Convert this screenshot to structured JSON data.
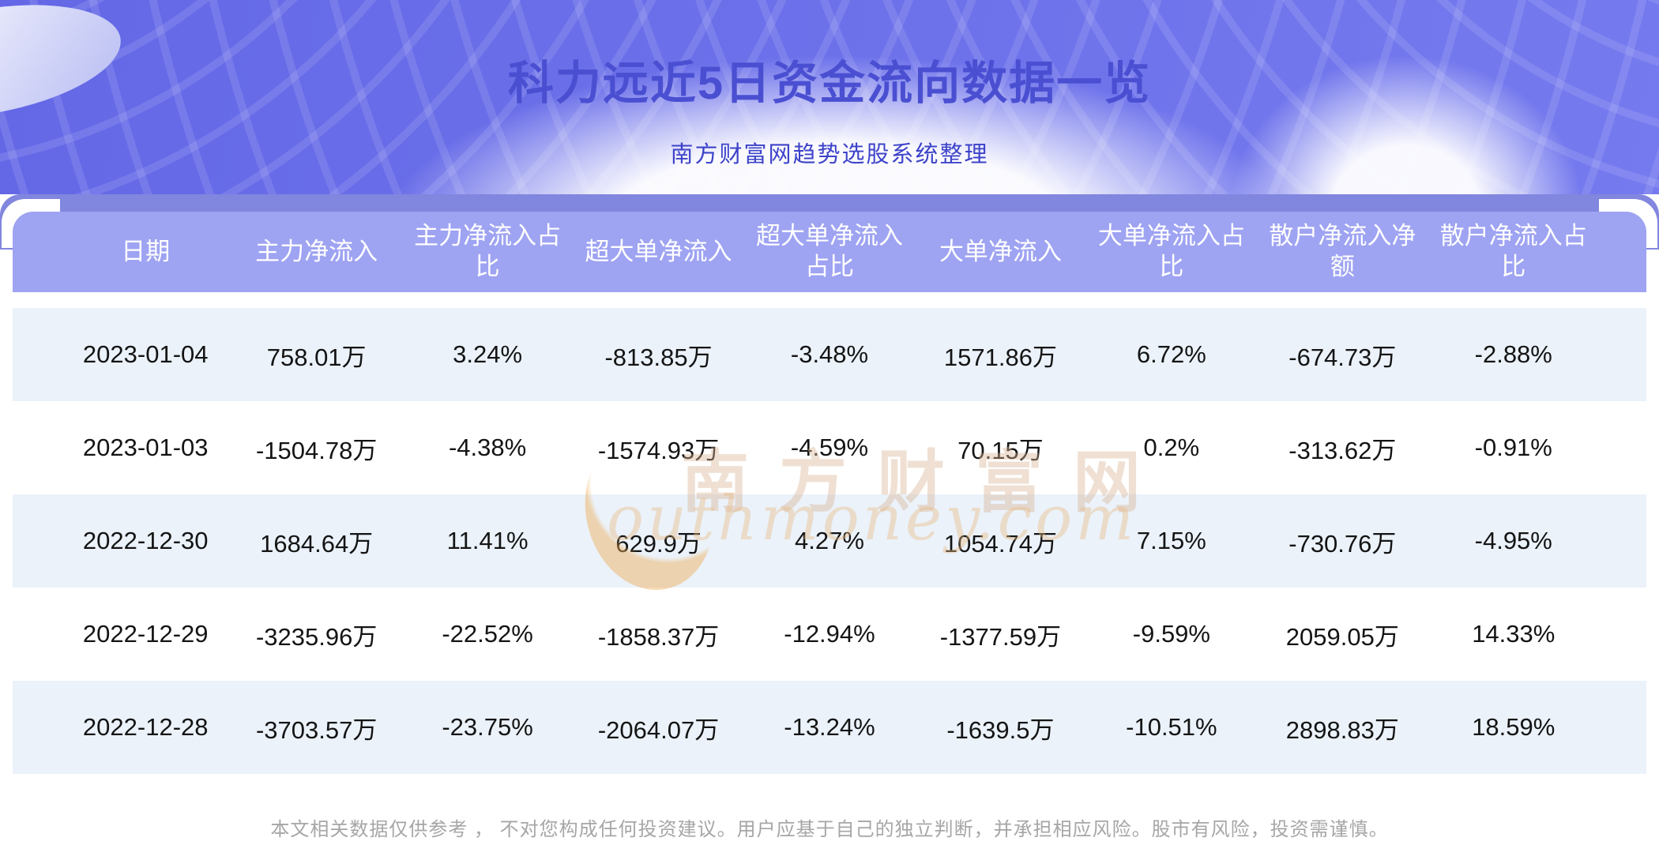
{
  "page": {
    "title": "科力远近5日资金流向数据一览",
    "subtitle": "南方财富网趋势选股系统整理",
    "disclaimer": "本文相关数据仅供参考 ， 不对您构成任何投资建议。用户应基于自己的独立判断，并承担相应风险。股市有风险，投资需谨慎。"
  },
  "watermark": {
    "cn": "南方财富网",
    "en": "outhmoney.com"
  },
  "colors": {
    "hero_background": "#6a6fe8",
    "title_color": "#4a4fd2",
    "subtitle_color": "#3d43c9",
    "backplate": "#8186de",
    "header_background": "#9ea3f2",
    "header_text": "#ffffff",
    "row_alt_background": "#ebf2fa",
    "row_background": "#ffffff",
    "cell_text": "#141414",
    "watermark_gold": "#eeac54",
    "disclaimer_text": "#a6a6a6"
  },
  "table": {
    "columns": [
      "日期",
      "主力净流入",
      "主力净流入占比",
      "超大单净流入",
      "超大单净流入占比",
      "大单净流入",
      "大单净流入占比",
      "散户净流入净额",
      "散户净流入占比"
    ],
    "rows": [
      [
        "2023-01-04",
        "758.01万",
        "3.24%",
        "-813.85万",
        "-3.48%",
        "1571.86万",
        "6.72%",
        "-674.73万",
        "-2.88%"
      ],
      [
        "2023-01-03",
        "-1504.78万",
        "-4.38%",
        "-1574.93万",
        "-4.59%",
        "70.15万",
        "0.2%",
        "-313.62万",
        "-0.91%"
      ],
      [
        "2022-12-30",
        "1684.64万",
        "11.41%",
        "629.9万",
        "4.27%",
        "1054.74万",
        "7.15%",
        "-730.76万",
        "-4.95%"
      ],
      [
        "2022-12-29",
        "-3235.96万",
        "-22.52%",
        "-1858.37万",
        "-12.94%",
        "-1377.59万",
        "-9.59%",
        "2059.05万",
        "14.33%"
      ],
      [
        "2022-12-28",
        "-3703.57万",
        "-23.75%",
        "-2064.07万",
        "-13.24%",
        "-1639.5万",
        "-10.51%",
        "2898.83万",
        "18.59%"
      ]
    ]
  },
  "chart_data": {
    "type": "table",
    "title": "科力远近5日资金流向数据一览",
    "subtitle": "南方财富网趋势选股系统整理",
    "columns": [
      "日期",
      "主力净流入",
      "主力净流入占比",
      "超大单净流入",
      "超大单净流入占比",
      "大单净流入",
      "大单净流入占比",
      "散户净流入净额",
      "散户净流入占比"
    ],
    "rows": [
      {
        "日期": "2023-01-04",
        "主力净流入": "758.01万",
        "主力净流入占比": "3.24%",
        "超大单净流入": "-813.85万",
        "超大单净流入占比": "-3.48%",
        "大单净流入": "1571.86万",
        "大单净流入占比": "6.72%",
        "散户净流入净额": "-674.73万",
        "散户净流入占比": "-2.88%"
      },
      {
        "日期": "2023-01-03",
        "主力净流入": "-1504.78万",
        "主力净流入占比": "-4.38%",
        "超大单净流入": "-1574.93万",
        "超大单净流入占比": "-4.59%",
        "大单净流入": "70.15万",
        "大单净流入占比": "0.2%",
        "散户净流入净额": "-313.62万",
        "散户净流入占比": "-0.91%"
      },
      {
        "日期": "2022-12-30",
        "主力净流入": "1684.64万",
        "主力净流入占比": "11.41%",
        "超大单净流入": "629.9万",
        "超大单净流入占比": "4.27%",
        "大单净流入": "1054.74万",
        "大单净流入占比": "7.15%",
        "散户净流入净额": "-730.76万",
        "散户净流入占比": "-4.95%"
      },
      {
        "日期": "2022-12-29",
        "主力净流入": "-3235.96万",
        "主力净流入占比": "-22.52%",
        "超大单净流入": "-1858.37万",
        "超大单净流入占比": "-12.94%",
        "大单净流入": "-1377.59万",
        "大单净流入占比": "-9.59%",
        "散户净流入净额": "2059.05万",
        "散户净流入占比": "14.33%"
      },
      {
        "日期": "2022-12-28",
        "主力净流入": "-3703.57万",
        "主力净流入占比": "-23.75%",
        "超大单净流入": "-2064.07万",
        "超大单净流入占比": "-13.24%",
        "大单净流入": "-1639.5万",
        "大单净流入占比": "-10.51%",
        "散户净流入净额": "2898.83万",
        "散户净流入占比": "18.59%"
      }
    ]
  }
}
